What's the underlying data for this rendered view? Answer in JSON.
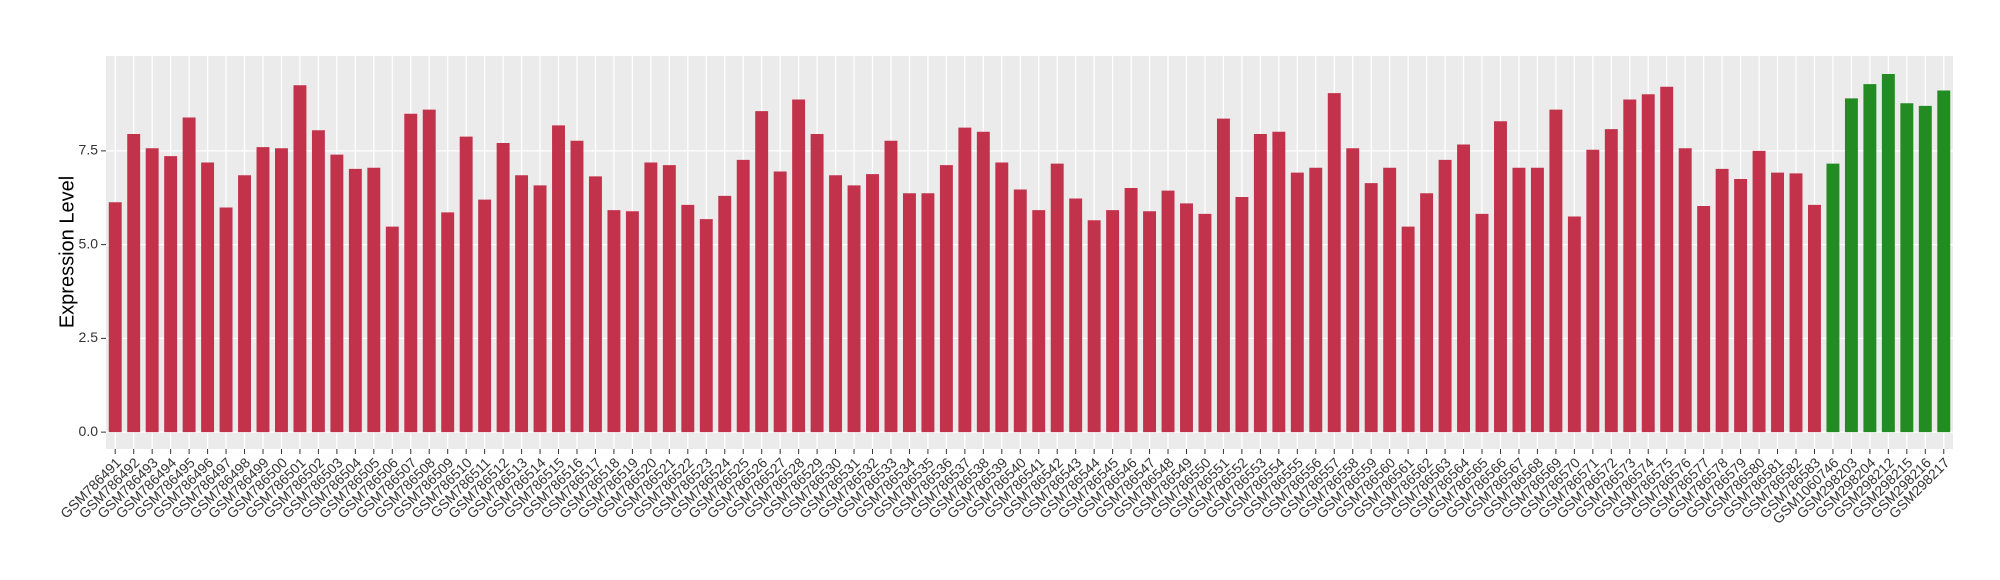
{
  "chart_data": {
    "type": "bar",
    "ylabel": "Expression Level",
    "categories": [
      "GSM786491",
      "GSM786492",
      "GSM786493",
      "GSM786494",
      "GSM786495",
      "GSM786496",
      "GSM786497",
      "GSM786498",
      "GSM786499",
      "GSM786500",
      "GSM786501",
      "GSM786502",
      "GSM786503",
      "GSM786504",
      "GSM786505",
      "GSM786506",
      "GSM786507",
      "GSM786508",
      "GSM786509",
      "GSM786510",
      "GSM786511",
      "GSM786512",
      "GSM786513",
      "GSM786514",
      "GSM786515",
      "GSM786516",
      "GSM786517",
      "GSM786518",
      "GSM786519",
      "GSM786520",
      "GSM786521",
      "GSM786522",
      "GSM786523",
      "GSM786524",
      "GSM786525",
      "GSM786526",
      "GSM786527",
      "GSM786528",
      "GSM786529",
      "GSM786530",
      "GSM786531",
      "GSM786532",
      "GSM786533",
      "GSM786534",
      "GSM786535",
      "GSM786536",
      "GSM786537",
      "GSM786538",
      "GSM786539",
      "GSM786540",
      "GSM786541",
      "GSM786542",
      "GSM786543",
      "GSM786544",
      "GSM786545",
      "GSM786546",
      "GSM786547",
      "GSM786548",
      "GSM786549",
      "GSM786550",
      "GSM786551",
      "GSM786552",
      "GSM786553",
      "GSM786554",
      "GSM786555",
      "GSM786556",
      "GSM786557",
      "GSM786558",
      "GSM786559",
      "GSM786560",
      "GSM786561",
      "GSM786562",
      "GSM786563",
      "GSM786564",
      "GSM786565",
      "GSM786566",
      "GSM786567",
      "GSM786568",
      "GSM786569",
      "GSM786570",
      "GSM786571",
      "GSM786572",
      "GSM786573",
      "GSM786574",
      "GSM786575",
      "GSM786576",
      "GSM786577",
      "GSM786578",
      "GSM786579",
      "GSM786580",
      "GSM786581",
      "GSM786582",
      "GSM786583",
      "GSM1060746",
      "GSM298203",
      "GSM298204",
      "GSM298212",
      "GSM298215",
      "GSM298216",
      "GSM298217"
    ],
    "values": [
      6.13,
      7.95,
      7.57,
      7.36,
      8.39,
      7.19,
      5.99,
      6.85,
      7.6,
      7.57,
      9.25,
      8.05,
      7.4,
      7.02,
      7.05,
      5.48,
      8.49,
      8.6,
      5.86,
      7.88,
      6.2,
      7.71,
      6.85,
      6.58,
      8.18,
      7.77,
      6.82,
      5.92,
      5.89,
      7.19,
      7.12,
      6.06,
      5.68,
      6.3,
      7.26,
      8.56,
      6.95,
      8.87,
      7.95,
      6.85,
      6.58,
      6.88,
      7.77,
      6.37,
      6.37,
      7.12,
      8.12,
      8.01,
      7.19,
      6.47,
      5.92,
      7.16,
      6.23,
      5.65,
      5.92,
      6.51,
      5.89,
      6.44,
      6.1,
      5.82,
      8.36,
      6.27,
      7.95,
      8.01,
      6.92,
      7.05,
      9.04,
      7.57,
      6.64,
      7.05,
      5.48,
      6.37,
      7.26,
      7.67,
      5.82,
      8.29,
      7.05,
      7.05,
      8.6,
      5.75,
      7.53,
      8.08,
      8.87,
      9.01,
      9.21,
      7.57,
      6.03,
      7.02,
      6.75,
      7.5,
      6.92,
      6.9,
      6.06,
      7.16,
      8.9,
      9.28,
      9.55,
      8.77,
      8.7,
      9.11
    ],
    "colors": [
      "#c3324b",
      "#c3324b",
      "#c3324b",
      "#c3324b",
      "#c3324b",
      "#c3324b",
      "#c3324b",
      "#c3324b",
      "#c3324b",
      "#c3324b",
      "#c3324b",
      "#c3324b",
      "#c3324b",
      "#c3324b",
      "#c3324b",
      "#c3324b",
      "#c3324b",
      "#c3324b",
      "#c3324b",
      "#c3324b",
      "#c3324b",
      "#c3324b",
      "#c3324b",
      "#c3324b",
      "#c3324b",
      "#c3324b",
      "#c3324b",
      "#c3324b",
      "#c3324b",
      "#c3324b",
      "#c3324b",
      "#c3324b",
      "#c3324b",
      "#c3324b",
      "#c3324b",
      "#c3324b",
      "#c3324b",
      "#c3324b",
      "#c3324b",
      "#c3324b",
      "#c3324b",
      "#c3324b",
      "#c3324b",
      "#c3324b",
      "#c3324b",
      "#c3324b",
      "#c3324b",
      "#c3324b",
      "#c3324b",
      "#c3324b",
      "#c3324b",
      "#c3324b",
      "#c3324b",
      "#c3324b",
      "#c3324b",
      "#c3324b",
      "#c3324b",
      "#c3324b",
      "#c3324b",
      "#c3324b",
      "#c3324b",
      "#c3324b",
      "#c3324b",
      "#c3324b",
      "#c3324b",
      "#c3324b",
      "#c3324b",
      "#c3324b",
      "#c3324b",
      "#c3324b",
      "#c3324b",
      "#c3324b",
      "#c3324b",
      "#c3324b",
      "#c3324b",
      "#c3324b",
      "#c3324b",
      "#c3324b",
      "#c3324b",
      "#c3324b",
      "#c3324b",
      "#c3324b",
      "#c3324b",
      "#c3324b",
      "#c3324b",
      "#c3324b",
      "#c3324b",
      "#c3324b",
      "#c3324b",
      "#c3324b",
      "#c3324b",
      "#c3324b",
      "#c3324b",
      "#228b22",
      "#228b22",
      "#228b22",
      "#228b22",
      "#228b22",
      "#228b22",
      "#228b22"
    ],
    "ylim": [
      -0.45,
      10.03
    ],
    "yticks": [
      {
        "value": 0,
        "label": "0.0"
      },
      {
        "value": 2.5,
        "label": "2.5"
      },
      {
        "value": 5,
        "label": "5.0"
      },
      {
        "value": 7.5,
        "label": "7.5"
      }
    ],
    "grid": true
  }
}
